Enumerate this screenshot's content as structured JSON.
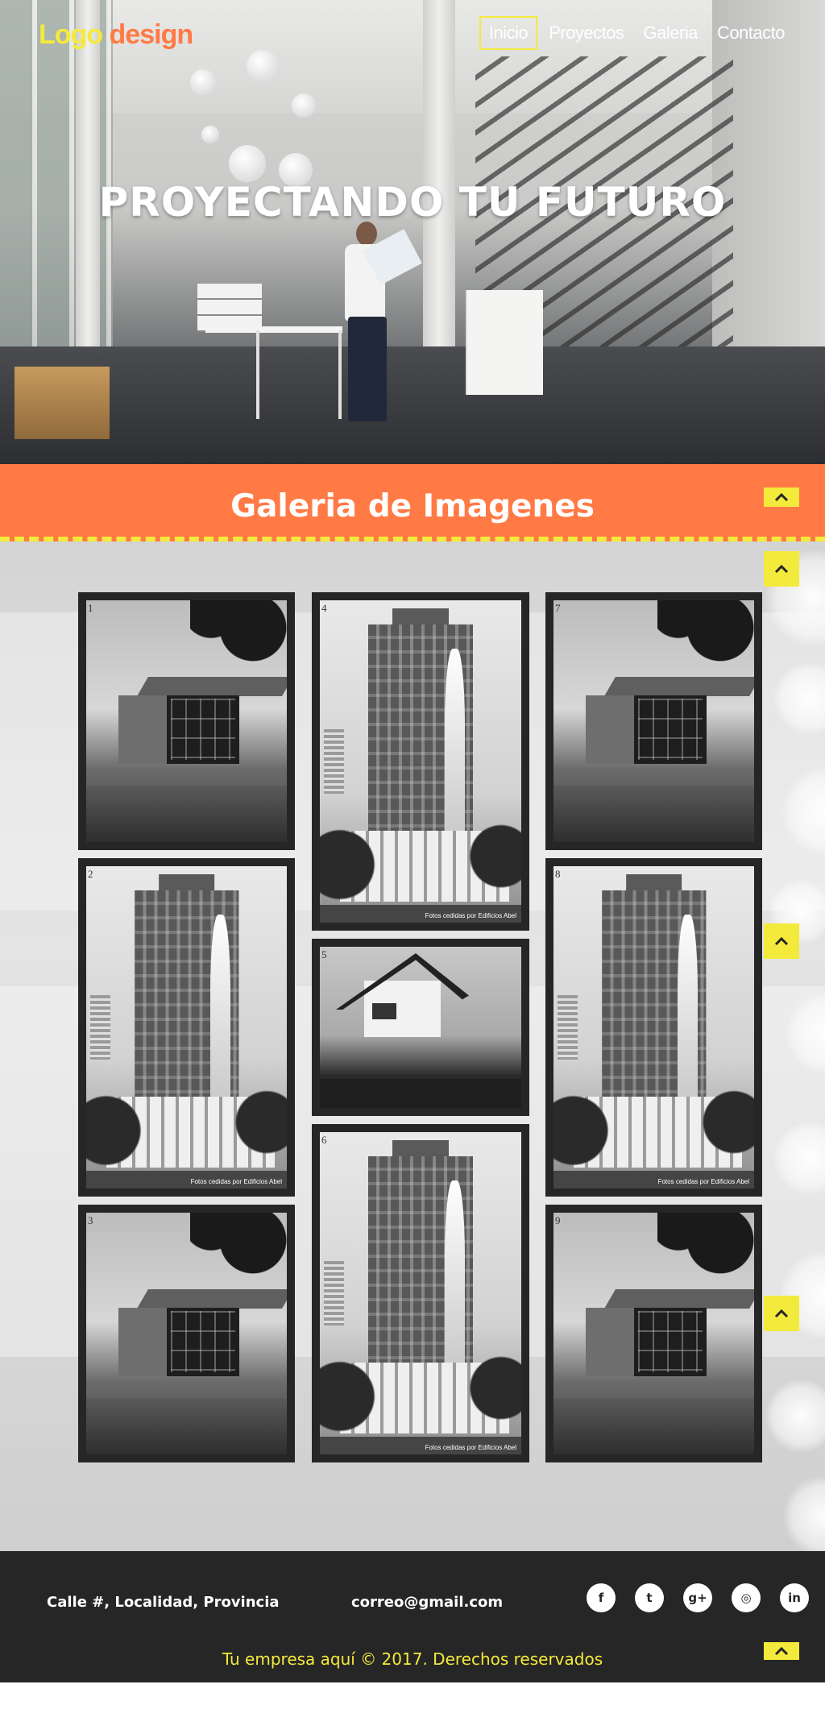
{
  "header": {
    "logo_part1": "Logo",
    "logo_part2": "design",
    "nav": [
      {
        "label": "Inicio",
        "active": true
      },
      {
        "label": "Proyectos",
        "active": false
      },
      {
        "label": "Galeria",
        "active": false
      },
      {
        "label": "Contacto",
        "active": false
      }
    ]
  },
  "hero": {
    "title": "PROYECTANDO TU FUTURO"
  },
  "gallery": {
    "title": "Galeria de Imagenes",
    "items": [
      {
        "number": "1",
        "subject": "house",
        "credit": ""
      },
      {
        "number": "2",
        "subject": "tower",
        "credit": "Fotos cedidas por Edificios Abel"
      },
      {
        "number": "3",
        "subject": "house",
        "credit": ""
      },
      {
        "number": "4",
        "subject": "tower",
        "credit": "Fotos cedidas por Edificios Abel"
      },
      {
        "number": "5",
        "subject": "modern",
        "credit": ""
      },
      {
        "number": "6",
        "subject": "tower",
        "credit": "Fotos cedidas por Edificios Abel"
      },
      {
        "number": "7",
        "subject": "house",
        "credit": ""
      },
      {
        "number": "8",
        "subject": "tower",
        "credit": "Fotos cedidas por Edificios Abel"
      },
      {
        "number": "9",
        "subject": "house",
        "credit": ""
      }
    ]
  },
  "footer": {
    "address": "Calle #, Localidad, Provincia",
    "email": "correo@gmail.com",
    "social": [
      {
        "icon": "facebook-icon",
        "glyph": "f"
      },
      {
        "icon": "twitter-icon",
        "glyph": "t"
      },
      {
        "icon": "google-plus-icon",
        "glyph": "g+"
      },
      {
        "icon": "instagram-icon",
        "glyph": "◎"
      },
      {
        "icon": "linkedin-icon",
        "glyph": "in"
      }
    ],
    "copyright": "Tu empresa aquí © 2017. Derechos reservados"
  },
  "colors": {
    "accent_orange": "#ff7a45",
    "accent_yellow": "#f4ea3c",
    "footer_bg": "#262626"
  },
  "scroll_buttons": {
    "icon": "chevron-up-icon"
  }
}
